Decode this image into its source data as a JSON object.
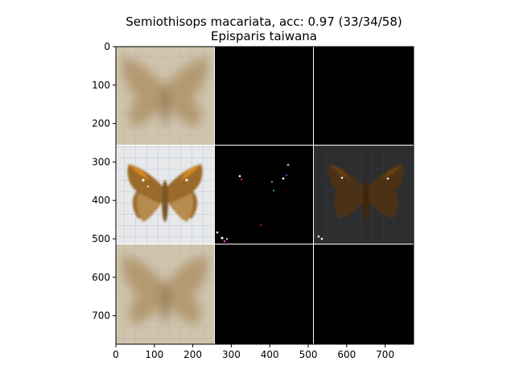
{
  "figure": {
    "title_line1": "Semiothisops macariata, acc: 0.97 (33/34/58)",
    "title_line2": "Episparis taiwana",
    "background_color": "#ffffff",
    "axis_color": "#000000",
    "grid_line_color": "#ffffff"
  },
  "axes": {
    "x_ticks": [
      "0",
      "100",
      "200",
      "300",
      "400",
      "500",
      "600",
      "700"
    ],
    "y_ticks": [
      "0",
      "100",
      "200",
      "300",
      "400",
      "500",
      "600",
      "700"
    ],
    "x_range": [
      0,
      774
    ],
    "y_range": [
      0,
      774
    ]
  },
  "panels": [
    {
      "row": 0,
      "col": 0,
      "content": "blurred-moth",
      "base_color": "#cdc0a8",
      "moth_color": "#b8a07a"
    },
    {
      "row": 0,
      "col": 1,
      "content": "black",
      "base_color": "#000000"
    },
    {
      "row": 0,
      "col": 2,
      "content": "black",
      "base_color": "#000000"
    },
    {
      "row": 1,
      "col": 0,
      "content": "moth-photo",
      "base_color": "#e4e6e8",
      "moth_color": "#9a6a2a"
    },
    {
      "row": 1,
      "col": 1,
      "content": "sparse-points",
      "base_color": "#000000"
    },
    {
      "row": 1,
      "col": 2,
      "content": "dark-moth",
      "base_color": "#2b2c2e",
      "moth_color": "#4b3315"
    },
    {
      "row": 2,
      "col": 0,
      "content": "blurred-moth",
      "base_color": "#c8bca4",
      "moth_color": "#b8a07a"
    },
    {
      "row": 2,
      "col": 1,
      "content": "black",
      "base_color": "#000000"
    },
    {
      "row": 2,
      "col": 2,
      "content": "black",
      "base_color": "#000000"
    }
  ]
}
